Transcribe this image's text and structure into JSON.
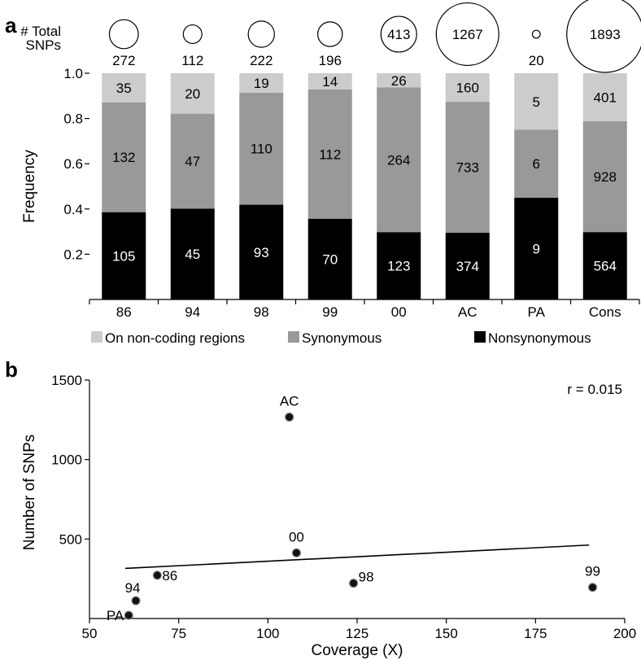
{
  "chart_data": [
    {
      "panel_label": "a",
      "type": "bar",
      "stacked": true,
      "ylabel": "Frequency",
      "ylim": [
        0,
        1.0
      ],
      "yticks": [
        "0.2",
        "0.4",
        "0.6",
        "0.8",
        "1.0"
      ],
      "categories": [
        "86",
        "94",
        "98",
        "99",
        "00",
        "AC",
        "PA",
        "Cons"
      ],
      "total_label": "# Total\nSNPs",
      "totals": [
        272,
        112,
        222,
        196,
        413,
        1267,
        20,
        1893
      ],
      "series": [
        {
          "name": "Nonsynonymous",
          "color": "#000000",
          "text_color": "#ffffff",
          "counts": [
            105,
            45,
            93,
            70,
            123,
            374,
            9,
            564
          ]
        },
        {
          "name": "Synonymous",
          "color": "#999999",
          "text_color": "#000000",
          "counts": [
            132,
            47,
            110,
            112,
            264,
            733,
            6,
            928
          ]
        },
        {
          "name": "On non-coding regions",
          "color": "#cccccc",
          "text_color": "#000000",
          "counts": [
            35,
            20,
            19,
            14,
            26,
            160,
            5,
            401
          ]
        }
      ],
      "legend_order": [
        "On non-coding regions",
        "Synonymous",
        "Nonsynonymous"
      ],
      "legend_position": "bottom"
    },
    {
      "panel_label": "b",
      "type": "scatter",
      "xlabel": "Coverage (X)",
      "ylabel": "Number of SNPs",
      "xlim": [
        50,
        200
      ],
      "ylim": [
        0,
        1500
      ],
      "xticks": [
        "50",
        "75",
        "100",
        "125",
        "150",
        "175",
        "200"
      ],
      "yticks": [
        "500",
        "1000",
        "1500"
      ],
      "points": [
        {
          "label": "PA",
          "x": 61,
          "y": 20
        },
        {
          "label": "94",
          "x": 63,
          "y": 112
        },
        {
          "label": "86",
          "x": 69,
          "y": 272
        },
        {
          "label": "AC",
          "x": 106,
          "y": 1267
        },
        {
          "label": "00",
          "x": 108,
          "y": 413
        },
        {
          "label": "98",
          "x": 124,
          "y": 222
        },
        {
          "label": "99",
          "x": 191,
          "y": 196
        }
      ],
      "trendline": {
        "x": [
          60,
          190
        ],
        "y": [
          315,
          462
        ]
      },
      "annotation": "r = 0.015"
    }
  ]
}
